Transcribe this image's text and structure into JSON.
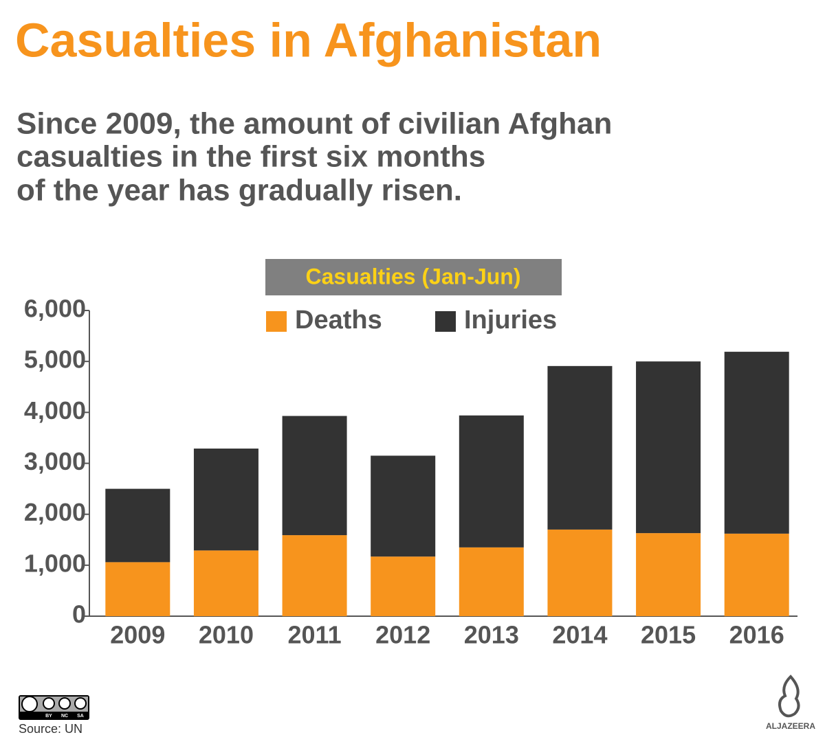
{
  "chart_data": {
    "type": "bar",
    "stacked": true,
    "title": "Casualties in Afghanistan",
    "subtitle": [
      "Since 2009, the amount of civilian Afghan",
      "casualties in the first six months",
      "of the year has gradually risen."
    ],
    "chart_title": "Casualties (Jan-Jun)",
    "categories": [
      "2009",
      "2010",
      "2011",
      "2012",
      "2013",
      "2014",
      "2015",
      "2016"
    ],
    "series": [
      {
        "name": "Deaths",
        "color": "#f7941d",
        "values": [
          1060,
          1290,
          1590,
          1170,
          1350,
          1700,
          1630,
          1620
        ]
      },
      {
        "name": "Injuries",
        "color": "#333333",
        "values": [
          1440,
          2000,
          2340,
          1980,
          2590,
          3210,
          3370,
          3570
        ]
      }
    ],
    "ylim": [
      0,
      6000
    ],
    "yticks": [
      0,
      {
        "value": 1000,
        "label": "1,000"
      },
      {
        "value": 2000,
        "label": "2,000"
      },
      {
        "value": 3000,
        "label": "3,000"
      },
      {
        "value": 4000,
        "label": "4,000"
      },
      {
        "value": 5000,
        "label": "5,000"
      },
      {
        "value": 6000,
        "label": "6,000"
      }
    ],
    "license": [
      "BY",
      "NC",
      "SA"
    ],
    "source": "Source: UN",
    "logo": "ALJAZEERA"
  }
}
